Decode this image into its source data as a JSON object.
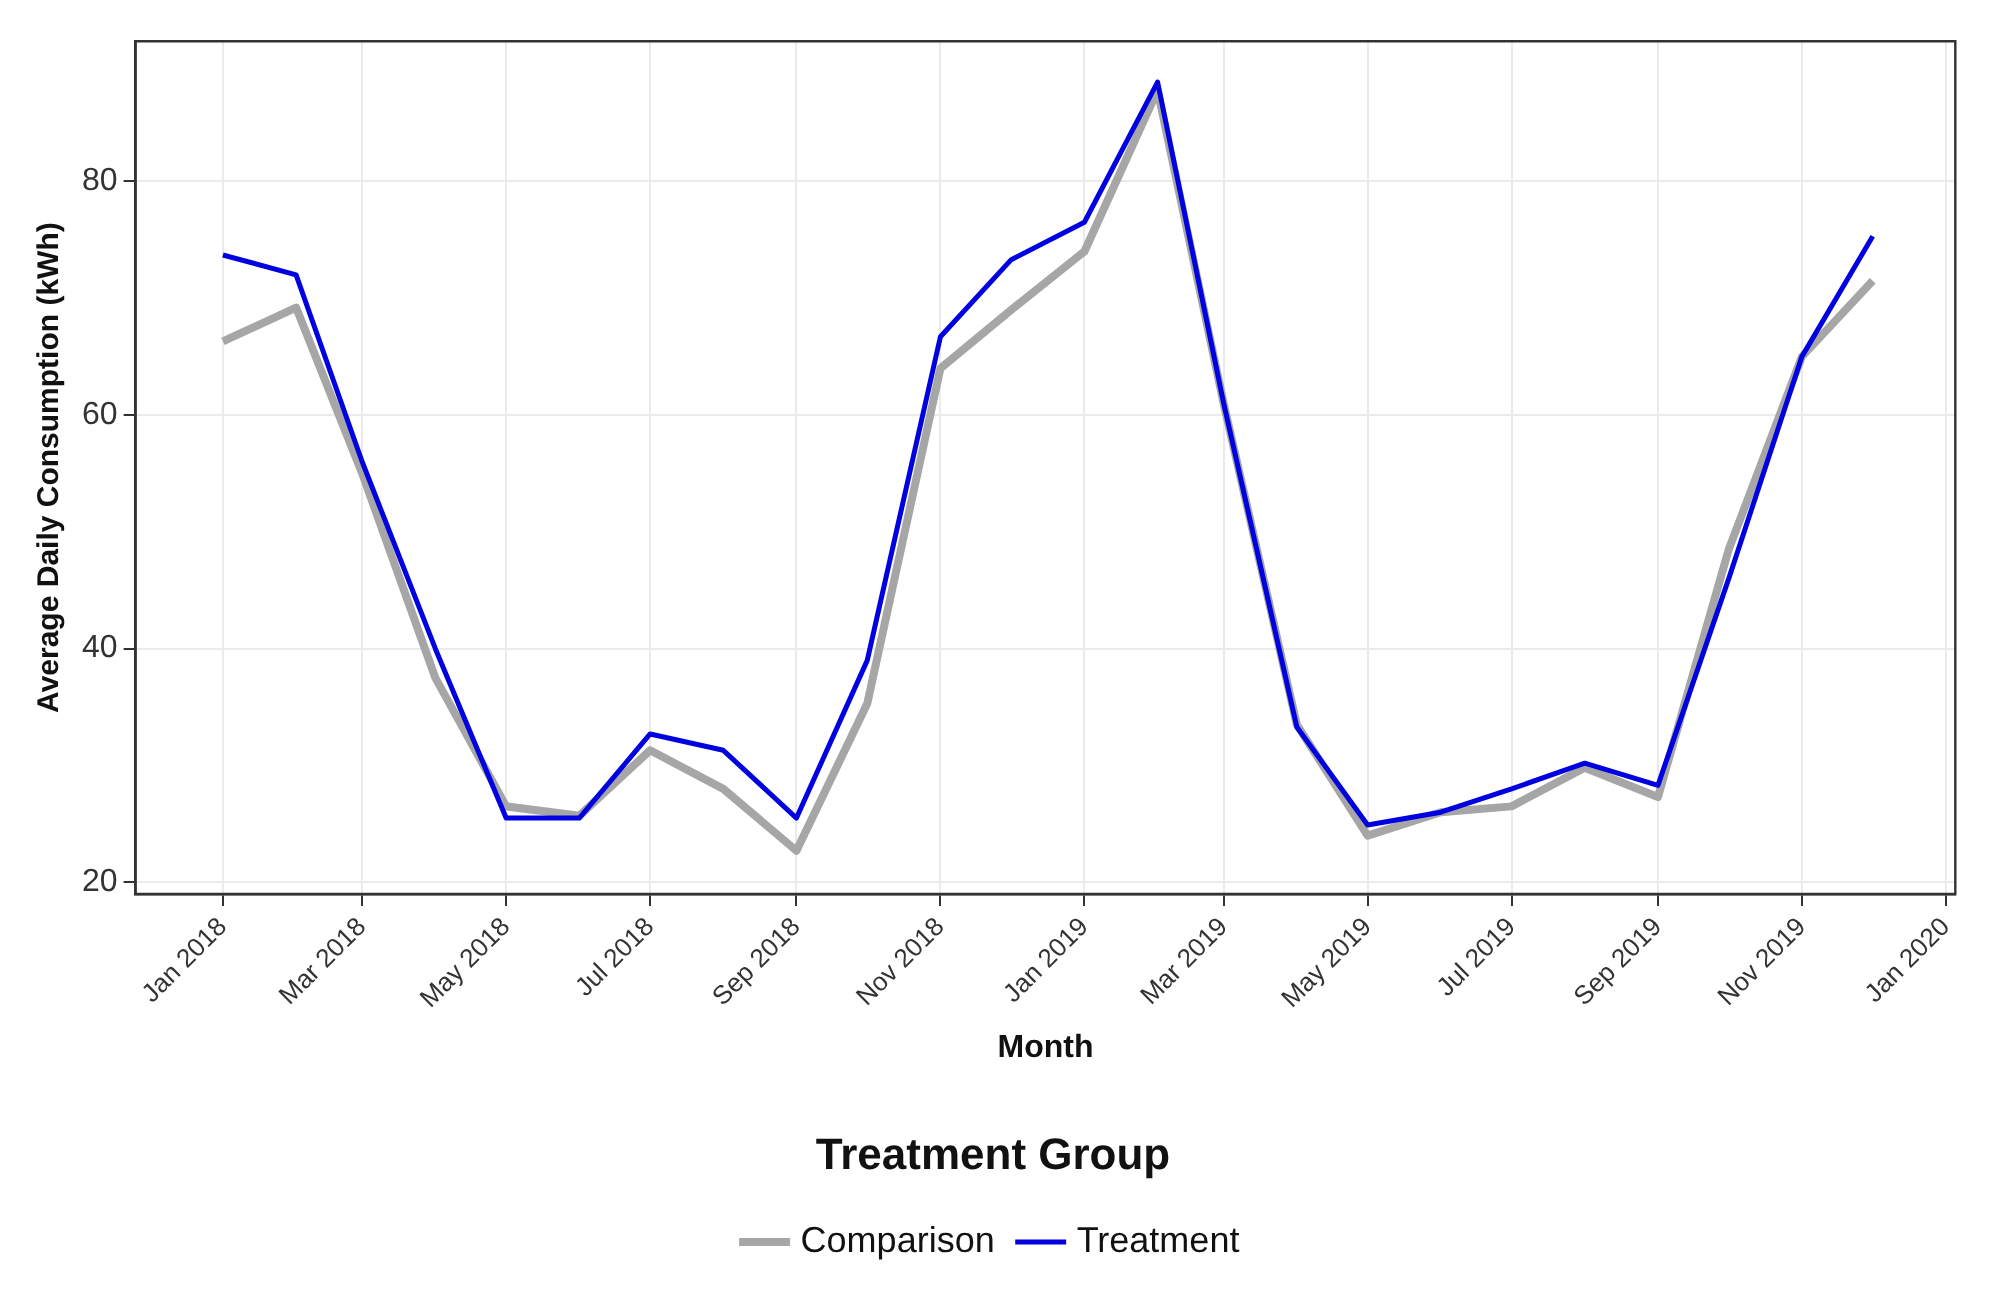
{
  "chart_data": {
    "type": "line",
    "xlabel": "Month",
    "ylabel": "Average Daily Consumption (kWh)",
    "legend_title": "Treatment Group",
    "legend": "bottom",
    "grid": true,
    "marker": "none",
    "line_style": "solid",
    "x": [
      "2018-01",
      "2018-02",
      "2018-03",
      "2018-04",
      "2018-05",
      "2018-06",
      "2018-07",
      "2018-08",
      "2018-09",
      "2018-10",
      "2018-11",
      "2018-12",
      "2019-01",
      "2019-02",
      "2019-03",
      "2019-04",
      "2019-05",
      "2019-06",
      "2019-07",
      "2019-08",
      "2019-09",
      "2019-10",
      "2019-11",
      "2019-12"
    ],
    "series": [
      {
        "name": "Comparison",
        "color": "#a6a6a6",
        "values": [
          66.3,
          69.2,
          55,
          37.5,
          26.5,
          25.7,
          31.3,
          28,
          22.7,
          35.3,
          64,
          69,
          74,
          87.8,
          61,
          33.5,
          24,
          26,
          26.5,
          29.8,
          27.3,
          48.5,
          65,
          71.5
        ]
      },
      {
        "name": "Treatment",
        "color": "#0000e0",
        "values": [
          73.7,
          72,
          56,
          40,
          25.5,
          25.5,
          32.7,
          31.3,
          25.5,
          39,
          66.7,
          73.3,
          76.5,
          88.5,
          61,
          33.3,
          24.9,
          26,
          28,
          30.2,
          28.3,
          46,
          65,
          75.3
        ]
      }
    ],
    "xlim": [
      "2017-11-25",
      "2020-01-05"
    ],
    "xticks": [
      {
        "value": "2018-01",
        "label": "Jan 2018"
      },
      {
        "value": "2018-03",
        "label": "Mar 2018"
      },
      {
        "value": "2018-05",
        "label": "May 2018"
      },
      {
        "value": "2018-07",
        "label": "Jul 2018"
      },
      {
        "value": "2018-09",
        "label": "Sep 2018"
      },
      {
        "value": "2018-11",
        "label": "Nov 2018"
      },
      {
        "value": "2019-01",
        "label": "Jan 2019"
      },
      {
        "value": "2019-03",
        "label": "Mar 2019"
      },
      {
        "value": "2019-05",
        "label": "May 2019"
      },
      {
        "value": "2019-07",
        "label": "Jul 2019"
      },
      {
        "value": "2019-09",
        "label": "Sep 2019"
      },
      {
        "value": "2019-11",
        "label": "Nov 2019"
      },
      {
        "value": "2020-01",
        "label": "Jan 2020"
      }
    ],
    "ylim": [
      19,
      92
    ],
    "yticks": [
      20,
      40,
      60,
      80
    ]
  }
}
